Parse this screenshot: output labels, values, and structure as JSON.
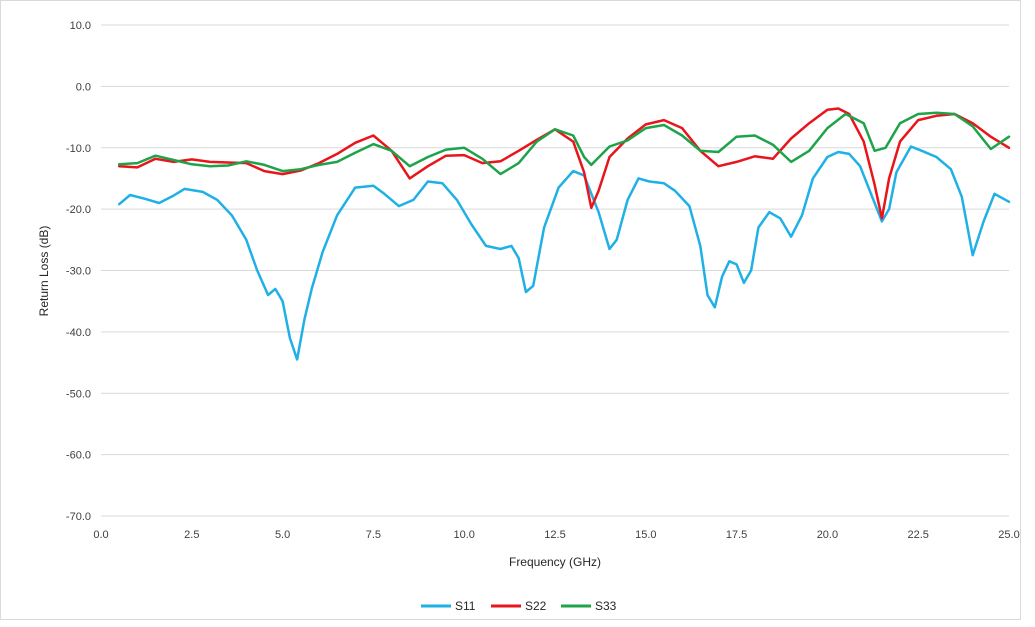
{
  "chart_data": {
    "type": "line",
    "xlabel": "Frequency (GHz)",
    "ylabel": "Return Loss (dB)",
    "xlim": [
      0,
      25
    ],
    "ylim": [
      -70,
      10
    ],
    "xticks": [
      "0.0",
      "2.5",
      "5.0",
      "7.5",
      "10.0",
      "12.5",
      "15.0",
      "17.5",
      "20.0",
      "22.5",
      "25.0"
    ],
    "yticks": [
      "10.0",
      "0.0",
      "-10.0",
      "-20.0",
      "-30.0",
      "-40.0",
      "-50.0",
      "-60.0",
      "-70.0"
    ],
    "grid": "horizontal",
    "legend_position": "bottom",
    "series": [
      {
        "name": "S11",
        "color": "#1fb0e6",
        "x": [
          0.5,
          0.8,
          1.2,
          1.6,
          2.0,
          2.3,
          2.8,
          3.2,
          3.6,
          4.0,
          4.3,
          4.6,
          4.8,
          5.0,
          5.2,
          5.4,
          5.6,
          5.8,
          6.1,
          6.5,
          7.0,
          7.5,
          7.8,
          8.2,
          8.6,
          9.0,
          9.4,
          9.8,
          10.2,
          10.6,
          11.0,
          11.3,
          11.5,
          11.7,
          11.9,
          12.2,
          12.6,
          13.0,
          13.3,
          13.7,
          14.0,
          14.2,
          14.5,
          14.8,
          15.1,
          15.5,
          15.8,
          16.2,
          16.5,
          16.7,
          16.9,
          17.1,
          17.3,
          17.5,
          17.7,
          17.9,
          18.1,
          18.4,
          18.7,
          19.0,
          19.3,
          19.6,
          20.0,
          20.3,
          20.6,
          20.9,
          21.2,
          21.5,
          21.7,
          21.9,
          22.3,
          22.6,
          23.0,
          23.4,
          23.7,
          24.0,
          24.3,
          24.6,
          25.0
        ],
        "values": [
          -19.2,
          -17.7,
          -18.3,
          -19.0,
          -17.8,
          -16.7,
          -17.2,
          -18.5,
          -21.0,
          -25.0,
          -30.0,
          -34.0,
          -33.0,
          -35.0,
          -41.0,
          -44.5,
          -38.0,
          -33.0,
          -27.0,
          -21.0,
          -16.5,
          -16.2,
          -17.5,
          -19.5,
          -18.5,
          -15.5,
          -15.8,
          -18.5,
          -22.5,
          -26.0,
          -26.5,
          -26.0,
          -28.0,
          -33.5,
          -32.5,
          -23.0,
          -16.5,
          -13.8,
          -14.5,
          -20.5,
          -26.5,
          -25.0,
          -18.5,
          -15.0,
          -15.5,
          -15.8,
          -17.0,
          -19.5,
          -26.0,
          -34.0,
          -36.0,
          -31.0,
          -28.5,
          -29.0,
          -32.0,
          -30.0,
          -23.0,
          -20.5,
          -21.5,
          -24.5,
          -21.0,
          -15.0,
          -11.5,
          -10.7,
          -11.0,
          -13.0,
          -17.5,
          -22.0,
          -20.0,
          -14.0,
          -9.8,
          -10.5,
          -11.5,
          -13.5,
          -18.0,
          -27.5,
          -22.0,
          -17.5,
          -18.8
        ]
      },
      {
        "name": "S22",
        "color": "#e8151b",
        "x": [
          0.5,
          1.0,
          1.5,
          2.0,
          2.5,
          3.0,
          3.5,
          4.0,
          4.5,
          5.0,
          5.5,
          6.0,
          6.5,
          7.0,
          7.5,
          8.0,
          8.5,
          9.0,
          9.5,
          10.0,
          10.5,
          11.0,
          11.5,
          12.0,
          12.5,
          13.0,
          13.3,
          13.5,
          13.7,
          14.0,
          14.5,
          15.0,
          15.5,
          16.0,
          16.5,
          17.0,
          17.5,
          18.0,
          18.5,
          19.0,
          19.5,
          20.0,
          20.3,
          20.6,
          21.0,
          21.3,
          21.5,
          21.7,
          22.0,
          22.5,
          23.0,
          23.5,
          24.0,
          24.5,
          25.0
        ],
        "values": [
          -13.0,
          -13.2,
          -11.8,
          -12.3,
          -11.9,
          -12.3,
          -12.4,
          -12.5,
          -13.8,
          -14.3,
          -13.7,
          -12.5,
          -11.0,
          -9.2,
          -8.0,
          -10.5,
          -15.0,
          -13.0,
          -11.3,
          -11.2,
          -12.5,
          -12.2,
          -10.5,
          -8.7,
          -7.0,
          -9.0,
          -14.0,
          -19.8,
          -17.0,
          -11.5,
          -8.5,
          -6.2,
          -5.5,
          -6.8,
          -10.5,
          -13.0,
          -12.3,
          -11.4,
          -11.8,
          -8.5,
          -6.0,
          -3.8,
          -3.6,
          -4.5,
          -9.0,
          -16.0,
          -21.5,
          -15.0,
          -9.0,
          -5.5,
          -4.8,
          -4.5,
          -6.0,
          -8.2,
          -10.0
        ]
      },
      {
        "name": "S33",
        "color": "#1fa34a",
        "x": [
          0.5,
          1.0,
          1.5,
          2.0,
          2.5,
          3.0,
          3.5,
          4.0,
          4.5,
          5.0,
          5.5,
          6.0,
          6.5,
          7.0,
          7.5,
          8.0,
          8.5,
          9.0,
          9.5,
          10.0,
          10.5,
          11.0,
          11.5,
          12.0,
          12.5,
          13.0,
          13.3,
          13.5,
          13.8,
          14.0,
          14.5,
          15.0,
          15.5,
          16.0,
          16.5,
          17.0,
          17.5,
          18.0,
          18.5,
          19.0,
          19.5,
          20.0,
          20.5,
          21.0,
          21.3,
          21.6,
          22.0,
          22.5,
          23.0,
          23.5,
          24.0,
          24.5,
          25.0
        ],
        "values": [
          -12.7,
          -12.5,
          -11.3,
          -12.0,
          -12.7,
          -13.0,
          -12.9,
          -12.2,
          -12.8,
          -13.8,
          -13.5,
          -12.8,
          -12.3,
          -10.8,
          -9.4,
          -10.5,
          -13.0,
          -11.5,
          -10.3,
          -10.0,
          -11.8,
          -14.3,
          -12.5,
          -9.0,
          -7.0,
          -8.0,
          -11.5,
          -12.8,
          -11.0,
          -9.8,
          -8.8,
          -6.8,
          -6.3,
          -8.0,
          -10.5,
          -10.7,
          -8.2,
          -8.0,
          -9.5,
          -12.3,
          -10.5,
          -6.8,
          -4.5,
          -6.0,
          -10.5,
          -10.0,
          -6.0,
          -4.5,
          -4.3,
          -4.5,
          -6.5,
          -10.2,
          -8.2
        ]
      }
    ]
  }
}
